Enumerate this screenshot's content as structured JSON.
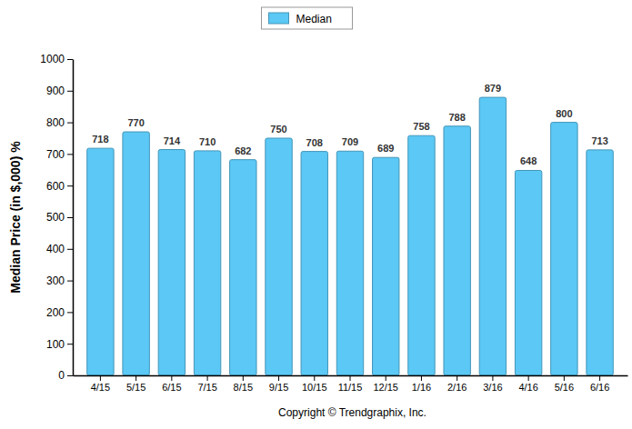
{
  "chart_data": {
    "type": "bar",
    "y_label": "Median Price (in $,000) %",
    "categories": [
      "4/15",
      "5/15",
      "6/15",
      "7/15",
      "8/15",
      "9/15",
      "10/15",
      "11/15",
      "12/15",
      "1/16",
      "2/16",
      "3/16",
      "4/16",
      "5/16",
      "6/16"
    ],
    "series": [
      {
        "name": "Median",
        "color": "#5bc8f5",
        "values": [
          718,
          770,
          714,
          710,
          682,
          750,
          708,
          709,
          689,
          758,
          788,
          879,
          648,
          800,
          713
        ]
      }
    ],
    "ylim": [
      0,
      1000
    ],
    "yticks": [
      0,
      100,
      200,
      300,
      400,
      500,
      600,
      700,
      800,
      900,
      1000
    ],
    "grid": false,
    "legend": "top",
    "data_labels": true,
    "annotations": [
      "Copyright © Trendgraphix, Inc."
    ]
  }
}
